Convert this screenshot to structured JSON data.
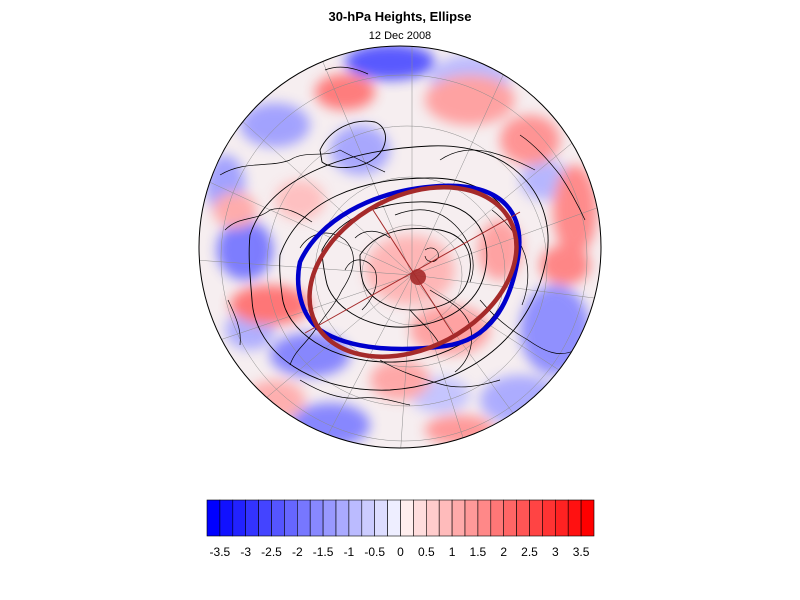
{
  "figure": {
    "title": "30-hPa Heights, Ellipse",
    "subtitle": "12 Dec 2008"
  },
  "colorbar": {
    "tick_labels": [
      "-3.5",
      "-3",
      "-2.5",
      "-2",
      "-1.5",
      "-1",
      "-0.5",
      "0",
      "0.5",
      "1",
      "1.5",
      "2",
      "2.5",
      "3",
      "3.5"
    ],
    "min": -3.75,
    "max": 3.75,
    "step": 0.25,
    "negative_color": "#0000ff",
    "positive_color": "#ff0000",
    "neutral_color": "#ffffff"
  },
  "map": {
    "projection": "north-polar-stereographic",
    "field": "standardized 30-hPa height anomaly",
    "colors": {
      "vortex_edge": "#0000cc",
      "fitted_ellipse": "#a52a2a",
      "height_contours": "#000000",
      "coastlines": "#000000",
      "grid": "#888888"
    }
  }
}
